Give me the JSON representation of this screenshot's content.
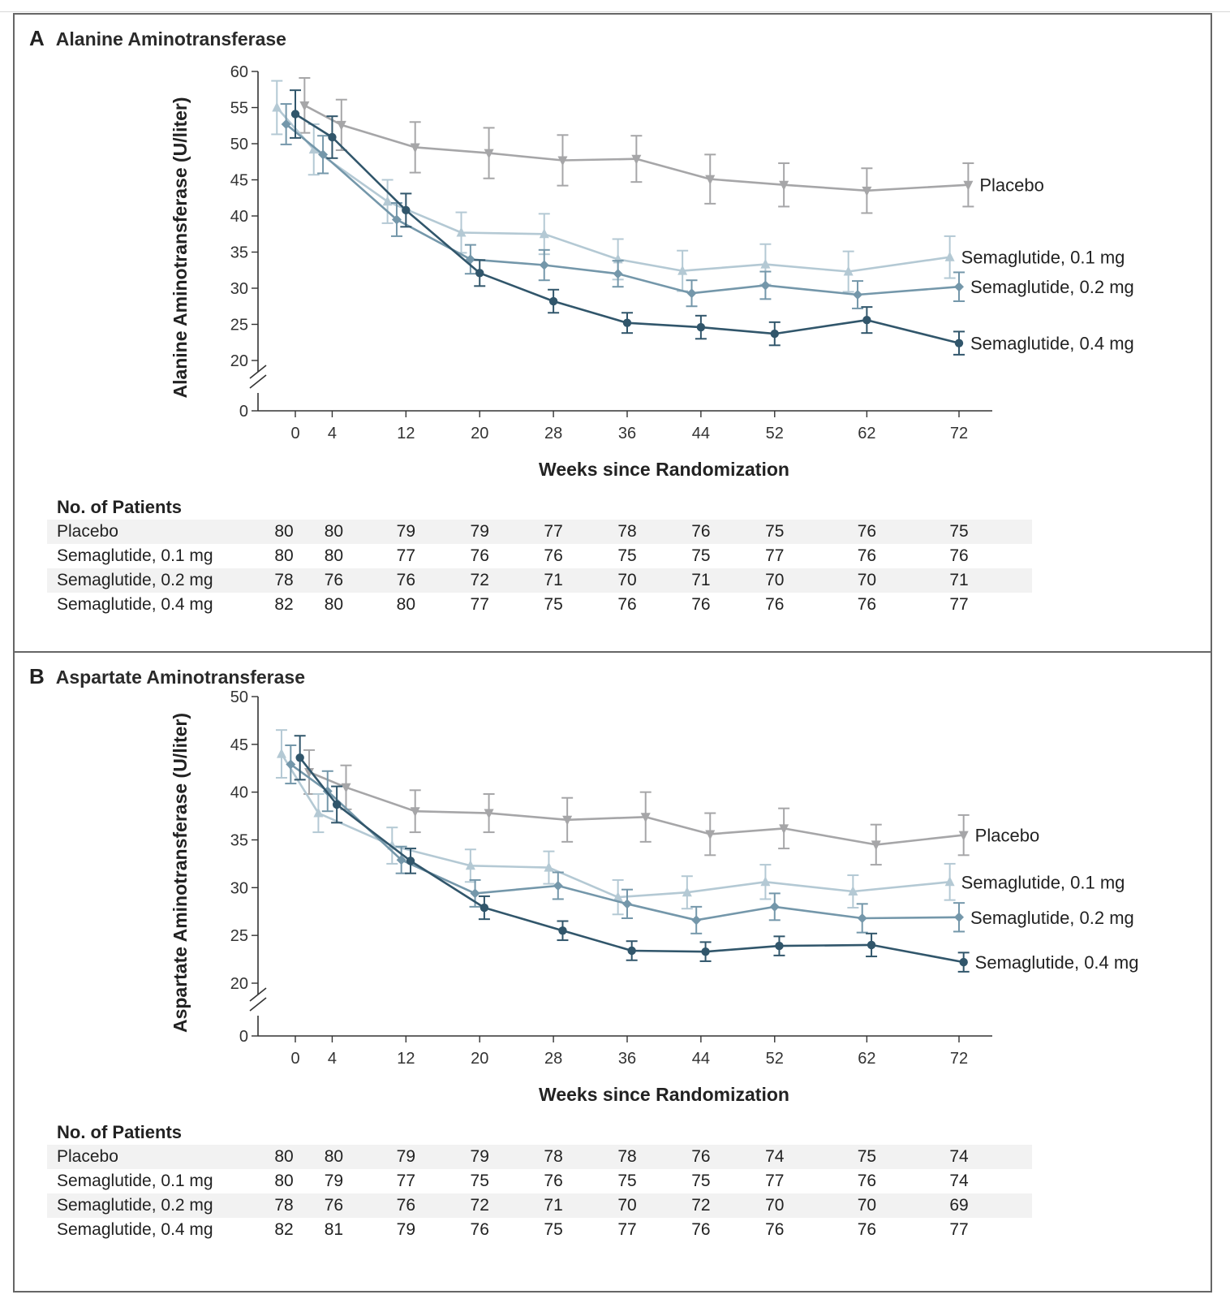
{
  "panels": [
    {
      "letter": "A",
      "title": "Alanine Aminotransferase",
      "patients": {
        "header": "No. of Patients",
        "rows": [
          {
            "label": "Placebo",
            "counts": [
              "80",
              "80",
              "79",
              "79",
              "77",
              "78",
              "76",
              "75",
              "76",
              "75"
            ]
          },
          {
            "label": "Semaglutide, 0.1 mg",
            "counts": [
              "80",
              "80",
              "77",
              "76",
              "76",
              "75",
              "75",
              "77",
              "76",
              "76"
            ]
          },
          {
            "label": "Semaglutide, 0.2 mg",
            "counts": [
              "78",
              "76",
              "76",
              "72",
              "71",
              "70",
              "71",
              "70",
              "70",
              "71"
            ]
          },
          {
            "label": "Semaglutide, 0.4 mg",
            "counts": [
              "82",
              "80",
              "80",
              "77",
              "75",
              "76",
              "76",
              "76",
              "76",
              "77"
            ]
          }
        ]
      }
    },
    {
      "letter": "B",
      "title": "Aspartate Aminotransferase",
      "patients": {
        "header": "No. of Patients",
        "rows": [
          {
            "label": "Placebo",
            "counts": [
              "80",
              "80",
              "79",
              "79",
              "78",
              "78",
              "76",
              "74",
              "75",
              "74"
            ]
          },
          {
            "label": "Semaglutide, 0.1 mg",
            "counts": [
              "80",
              "79",
              "77",
              "75",
              "76",
              "75",
              "75",
              "77",
              "76",
              "74"
            ]
          },
          {
            "label": "Semaglutide, 0.2 mg",
            "counts": [
              "78",
              "76",
              "76",
              "72",
              "71",
              "70",
              "72",
              "70",
              "70",
              "69"
            ]
          },
          {
            "label": "Semaglutide, 0.4 mg",
            "counts": [
              "82",
              "81",
              "79",
              "76",
              "75",
              "77",
              "76",
              "76",
              "76",
              "77"
            ]
          }
        ]
      }
    }
  ],
  "chart_data": [
    {
      "type": "line",
      "title": "Alanine Aminotransferase",
      "xlabel": "Weeks since Randomization",
      "ylabel": "Alanine Aminotransferase (U/liter)",
      "x_ticks": [
        0,
        4,
        12,
        20,
        28,
        36,
        44,
        52,
        62,
        72
      ],
      "y_ticks": [
        0,
        20,
        25,
        30,
        35,
        40,
        45,
        50,
        55,
        60
      ],
      "ylim": [
        20,
        60
      ],
      "y_axis_break": true,
      "grid": false,
      "legend": "labels at line ends (right)",
      "series": [
        {
          "name": "Placebo",
          "marker": "triangle-down",
          "color": "#a6a6a8",
          "x": [
            1,
            5,
            13,
            21,
            29,
            37,
            45,
            53,
            62,
            73
          ],
          "y": [
            55.3,
            52.6,
            49.5,
            48.7,
            47.7,
            47.9,
            45.1,
            44.3,
            43.5,
            44.3
          ],
          "error": [
            3.8,
            3.5,
            3.5,
            3.5,
            3.5,
            3.2,
            3.4,
            3.0,
            3.1,
            3.0
          ]
        },
        {
          "name": "Semaglutide, 0.1 mg",
          "marker": "triangle-up",
          "color": "#b4c9d4",
          "x": [
            -2,
            2,
            10,
            18,
            27,
            35,
            42,
            51,
            60,
            71
          ],
          "y": [
            55.0,
            49.2,
            42.0,
            37.7,
            37.5,
            34.0,
            32.4,
            33.3,
            32.3,
            34.3
          ],
          "error": [
            3.7,
            3.5,
            3.0,
            2.8,
            2.8,
            2.8,
            2.8,
            2.8,
            2.8,
            2.9
          ]
        },
        {
          "name": "Semaglutide, 0.2 mg",
          "marker": "diamond",
          "color": "#7497aa",
          "x": [
            -1,
            3,
            11,
            19,
            27,
            35,
            43,
            51,
            61,
            72
          ],
          "y": [
            52.7,
            48.5,
            39.5,
            34.0,
            33.2,
            32.0,
            29.3,
            30.4,
            29.1,
            30.2
          ],
          "error": [
            2.8,
            2.6,
            2.3,
            2.0,
            2.1,
            1.8,
            1.8,
            1.9,
            1.9,
            2.0
          ]
        },
        {
          "name": "Semaglutide, 0.4 mg",
          "marker": "circle",
          "color": "#31566b",
          "x": [
            0,
            4,
            12,
            20,
            28,
            36,
            44,
            52,
            62,
            72
          ],
          "y": [
            54.1,
            50.9,
            40.8,
            32.1,
            28.2,
            25.2,
            24.6,
            23.7,
            25.6,
            22.4
          ],
          "error": [
            3.3,
            2.9,
            2.3,
            1.8,
            1.6,
            1.4,
            1.6,
            1.6,
            1.8,
            1.6
          ]
        }
      ]
    },
    {
      "type": "line",
      "title": "Aspartate Aminotransferase",
      "xlabel": "Weeks since Randomization",
      "ylabel": "Aspartate Aminotransferase (U/liter)",
      "x_ticks": [
        0,
        4,
        12,
        20,
        28,
        36,
        44,
        52,
        62,
        72
      ],
      "y_ticks": [
        0,
        20,
        25,
        30,
        35,
        40,
        45,
        50
      ],
      "ylim": [
        20,
        50
      ],
      "y_axis_break": true,
      "grid": false,
      "legend": "labels at line ends (right)",
      "series": [
        {
          "name": "Placebo",
          "marker": "triangle-down",
          "color": "#a6a6a8",
          "x": [
            1.5,
            5.5,
            13,
            21,
            29.5,
            38,
            45,
            53,
            63,
            72.5
          ],
          "y": [
            42.1,
            40.5,
            38.0,
            37.8,
            37.1,
            37.4,
            35.6,
            36.2,
            34.5,
            35.5
          ],
          "error": [
            2.3,
            2.3,
            2.2,
            2.0,
            2.3,
            2.6,
            2.2,
            2.1,
            2.1,
            2.1
          ]
        },
        {
          "name": "Semaglutide, 0.1 mg",
          "marker": "triangle-up",
          "color": "#b4c9d4",
          "x": [
            -1.5,
            2.5,
            10.5,
            19,
            27.5,
            35,
            42.5,
            51,
            60.5,
            71
          ],
          "y": [
            44.0,
            37.8,
            34.4,
            32.3,
            32.1,
            29.0,
            29.5,
            30.6,
            29.6,
            30.6
          ],
          "error": [
            2.5,
            2.0,
            1.9,
            1.7,
            1.7,
            1.8,
            1.7,
            1.8,
            1.7,
            1.9
          ]
        },
        {
          "name": "Semaglutide, 0.2 mg",
          "marker": "diamond",
          "color": "#7497aa",
          "x": [
            -0.5,
            3.5,
            11.5,
            19.5,
            28.5,
            36,
            43.5,
            52,
            61.5,
            72
          ],
          "y": [
            42.9,
            40.1,
            32.9,
            29.4,
            30.2,
            28.3,
            26.6,
            28.0,
            26.8,
            26.9
          ],
          "error": [
            2.0,
            2.1,
            1.4,
            1.4,
            1.4,
            1.5,
            1.4,
            1.4,
            1.5,
            1.5
          ]
        },
        {
          "name": "Semaglutide, 0.4 mg",
          "marker": "circle",
          "color": "#31566b",
          "x": [
            0.5,
            4.5,
            12.5,
            20.5,
            29,
            36.5,
            44.5,
            52.5,
            62.5,
            72.5
          ],
          "y": [
            43.6,
            38.7,
            32.8,
            27.9,
            25.5,
            23.4,
            23.3,
            23.9,
            24.0,
            22.2
          ],
          "error": [
            2.3,
            1.9,
            1.3,
            1.2,
            1.0,
            1.0,
            1.0,
            1.0,
            1.2,
            1.0
          ]
        }
      ]
    }
  ]
}
